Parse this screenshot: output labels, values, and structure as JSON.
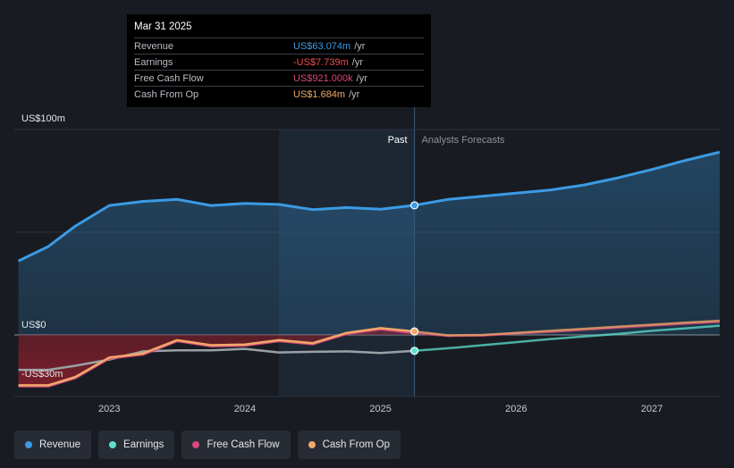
{
  "tooltip": {
    "date": "Mar 31 2025",
    "rows": [
      {
        "label": "Revenue",
        "value": "US$63.074m",
        "unit": "/yr",
        "color": "#3b9be4"
      },
      {
        "label": "Earnings",
        "value": "-US$7.739m",
        "unit": "/yr",
        "color": "#f04d4d"
      },
      {
        "label": "Free Cash Flow",
        "value": "US$921.000k",
        "unit": "/yr",
        "color": "#d9477d"
      },
      {
        "label": "Cash From Op",
        "value": "US$1.684m",
        "unit": "/yr",
        "color": "#f0a868"
      }
    ]
  },
  "chart_data": {
    "type": "area",
    "y_unit_labels": {
      "top": "US$100m",
      "zero": "US$0",
      "bottom": "-US$30m"
    },
    "ylim": [
      -30,
      100
    ],
    "xlim": [
      2022.3,
      2027.5
    ],
    "x_ticks": [
      {
        "value": 2023,
        "label": "2023"
      },
      {
        "value": 2024,
        "label": "2024"
      },
      {
        "value": 2025,
        "label": "2025"
      },
      {
        "value": 2026,
        "label": "2026"
      },
      {
        "value": 2027,
        "label": "2027"
      }
    ],
    "past_label": "Past",
    "forecast_label": "Analysts Forecasts",
    "past_start": 2024.25,
    "divider": 2025.25,
    "colors": {
      "revenue": "#3b9be4",
      "earnings": "#5ee0cf",
      "fcf": "#d9477d",
      "cfo": "#f0a868",
      "negative_fill": "#8a1f2c"
    },
    "series": [
      {
        "name": "Revenue",
        "key": "revenue",
        "points": [
          [
            2022.33,
            36
          ],
          [
            2022.55,
            43
          ],
          [
            2022.75,
            53
          ],
          [
            2023.0,
            63
          ],
          [
            2023.25,
            65
          ],
          [
            2023.5,
            66
          ],
          [
            2023.75,
            63
          ],
          [
            2024.0,
            64
          ],
          [
            2024.25,
            63.5
          ],
          [
            2024.5,
            61
          ],
          [
            2024.75,
            62
          ],
          [
            2025.0,
            61.2
          ],
          [
            2025.25,
            63.074
          ],
          [
            2025.5,
            66
          ],
          [
            2025.75,
            67.5
          ],
          [
            2026.0,
            69
          ],
          [
            2026.25,
            70.5
          ],
          [
            2026.5,
            73
          ],
          [
            2026.75,
            76.5
          ],
          [
            2027.0,
            80.5
          ],
          [
            2027.25,
            85
          ],
          [
            2027.5,
            89
          ]
        ]
      },
      {
        "name": "Earnings",
        "key": "earnings",
        "points": [
          [
            2022.33,
            -17
          ],
          [
            2022.55,
            -17
          ],
          [
            2022.75,
            -15
          ],
          [
            2023.0,
            -12
          ],
          [
            2023.25,
            -8
          ],
          [
            2023.5,
            -7.5
          ],
          [
            2023.75,
            -7.5
          ],
          [
            2024.0,
            -6.8
          ],
          [
            2024.25,
            -8.5
          ],
          [
            2024.5,
            -8.2
          ],
          [
            2024.75,
            -8
          ],
          [
            2025.0,
            -8.8
          ],
          [
            2025.25,
            -7.739
          ],
          [
            2025.5,
            -6.5
          ],
          [
            2025.75,
            -5
          ],
          [
            2026.0,
            -3.5
          ],
          [
            2026.25,
            -2
          ],
          [
            2026.5,
            -0.8
          ],
          [
            2026.75,
            0.5
          ],
          [
            2027.0,
            2
          ],
          [
            2027.25,
            3.2
          ],
          [
            2027.5,
            4.5
          ]
        ]
      },
      {
        "name": "Free Cash Flow",
        "key": "fcf",
        "points": [
          [
            2022.33,
            -25
          ],
          [
            2022.55,
            -25
          ],
          [
            2022.75,
            -21
          ],
          [
            2023.0,
            -11.5
          ],
          [
            2023.25,
            -9.5
          ],
          [
            2023.5,
            -3
          ],
          [
            2023.75,
            -5.5
          ],
          [
            2024.0,
            -5.2
          ],
          [
            2024.25,
            -3
          ],
          [
            2024.5,
            -4.5
          ],
          [
            2024.75,
            0.5
          ],
          [
            2025.0,
            2.8
          ],
          [
            2025.25,
            0.921
          ],
          [
            2025.5,
            -0.5
          ],
          [
            2025.75,
            -0.3
          ],
          [
            2026.0,
            0.8
          ],
          [
            2026.25,
            1.5
          ],
          [
            2026.5,
            2.5
          ],
          [
            2026.75,
            3.5
          ],
          [
            2027.0,
            4.5
          ],
          [
            2027.25,
            5.5
          ],
          [
            2027.5,
            6.3
          ]
        ]
      },
      {
        "name": "Cash From Op",
        "key": "cfo",
        "points": [
          [
            2022.33,
            -24.5
          ],
          [
            2022.55,
            -24.5
          ],
          [
            2022.75,
            -20.5
          ],
          [
            2023.0,
            -11
          ],
          [
            2023.25,
            -9
          ],
          [
            2023.5,
            -2.5
          ],
          [
            2023.75,
            -5
          ],
          [
            2024.0,
            -4.7
          ],
          [
            2024.25,
            -2.5
          ],
          [
            2024.5,
            -4
          ],
          [
            2024.75,
            1
          ],
          [
            2025.0,
            3.3
          ],
          [
            2025.25,
            1.684
          ],
          [
            2025.5,
            -0.2
          ],
          [
            2025.75,
            0
          ],
          [
            2026.0,
            1
          ],
          [
            2026.25,
            2
          ],
          [
            2026.5,
            3
          ],
          [
            2026.75,
            4
          ],
          [
            2027.0,
            5
          ],
          [
            2027.25,
            6
          ],
          [
            2027.5,
            6.9
          ]
        ]
      }
    ],
    "legend": [
      {
        "label": "Revenue",
        "key": "revenue"
      },
      {
        "label": "Earnings",
        "key": "earnings"
      },
      {
        "label": "Free Cash Flow",
        "key": "fcf"
      },
      {
        "label": "Cash From Op",
        "key": "cfo"
      }
    ]
  }
}
